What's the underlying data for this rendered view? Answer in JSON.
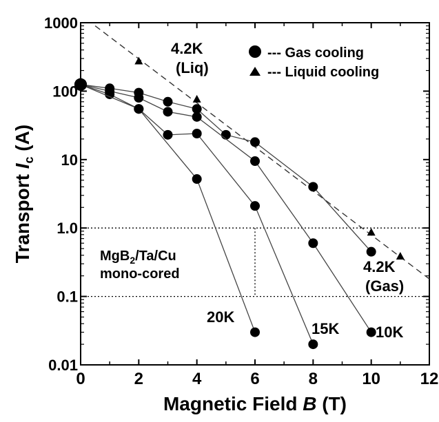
{
  "chart_data": {
    "type": "scatter",
    "xlabel_prefix": "Magnetic Field ",
    "xlabel_var": "B",
    "xlabel_suffix": " (T)",
    "ylabel_prefix": "Transport ",
    "ylabel_var": "I",
    "ylabel_sub": "c",
    "ylabel_suffix": " (A)",
    "xlim": [
      0,
      12
    ],
    "ylim": [
      0.01,
      1000
    ],
    "yscale": "log",
    "grid": "dotted, at y = 1 and y = 0.1",
    "x_ticks": [
      0,
      2,
      4,
      6,
      8,
      10,
      12
    ],
    "x_tick_labels": [
      "0",
      "2",
      "4",
      "6",
      "8",
      "10",
      "12"
    ],
    "y_ticks": [
      1000,
      100,
      10,
      1,
      0.1,
      0.01
    ],
    "y_tick_labels": [
      "1000",
      "100",
      "10",
      "1.0",
      "0.1",
      "0.01"
    ],
    "legend": {
      "placement": "top-right",
      "items": [
        {
          "marker": "circle",
          "label": "--- Gas cooling"
        },
        {
          "marker": "triangle",
          "label": "--- Liquid cooling"
        }
      ]
    },
    "series": [
      {
        "label": "4.2K (Gas)",
        "marker": "circle",
        "line": "solid",
        "x": [
          0,
          1,
          2,
          3,
          4,
          5,
          6,
          8,
          10
        ],
        "y": [
          125,
          110,
          95,
          70,
          55,
          23,
          18,
          4,
          0.45
        ]
      },
      {
        "label": "10K",
        "marker": "circle",
        "line": "solid",
        "x": [
          0,
          1,
          2,
          3,
          4,
          6,
          8,
          10
        ],
        "y": [
          125,
          100,
          80,
          50,
          42,
          9.5,
          0.6,
          0.03
        ]
      },
      {
        "label": "15K",
        "marker": "circle",
        "line": "solid",
        "x": [
          0,
          1,
          2,
          3,
          4,
          6,
          8
        ],
        "y": [
          125,
          90,
          55,
          23,
          24,
          2.1,
          0.02
        ]
      },
      {
        "label": "20K",
        "marker": "circle",
        "line": "solid",
        "x": [
          0,
          2,
          4,
          6
        ],
        "y": [
          125,
          55,
          5.2,
          0.03
        ]
      },
      {
        "label": "4.2K (Liq)",
        "marker": "triangle",
        "line": "dashed",
        "x": [
          2,
          4,
          10,
          11
        ],
        "y": [
          270,
          75,
          0.85,
          0.38
        ]
      }
    ],
    "dashed_line": {
      "x": [
        0.5,
        12
      ],
      "y": [
        900,
        0.18
      ]
    },
    "annotations": [
      {
        "name": "annotation-4-2k-liq",
        "lines": [
          "4.2K",
          "(Liq)"
        ]
      },
      {
        "name": "annotation-4-2k-gas",
        "lines": [
          "4.2K",
          "(Gas)"
        ]
      },
      {
        "name": "annotation-20k",
        "lines": [
          "20K"
        ]
      },
      {
        "name": "annotation-15k",
        "lines": [
          "15K"
        ]
      },
      {
        "name": "annotation-10k",
        "lines": [
          "10K"
        ]
      },
      {
        "name": "annotation-sample",
        "lines": [
          "MgB2/Ta/Cu",
          "mono-cored"
        ]
      }
    ]
  }
}
